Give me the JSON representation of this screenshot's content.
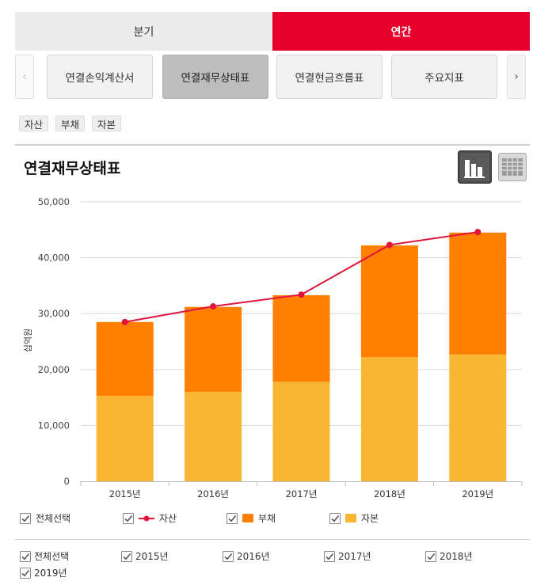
{
  "period_tabs": [
    {
      "label": "분기",
      "active": false
    },
    {
      "label": "연간",
      "active": true
    }
  ],
  "statement_tabs": [
    {
      "label": "연결손익계산서",
      "selected": false
    },
    {
      "label": "연결재무상태표",
      "selected": true
    },
    {
      "label": "연결현금흐름표",
      "selected": false
    },
    {
      "label": "주요지표",
      "selected": false
    }
  ],
  "nav": {
    "prev": "‹",
    "next": "›"
  },
  "chips": [
    "자산",
    "부채",
    "자본"
  ],
  "chart_title": "연결재무상태표",
  "view_icons": {
    "bar": "bar-chart-icon",
    "table": "table-grid-icon"
  },
  "colors": {
    "accent": "#e8002d",
    "debt": "#ff7f00",
    "equity": "#f8b633",
    "asset_line": "#e0143c"
  },
  "chart_data": {
    "type": "bar",
    "stacked": true,
    "categories": [
      "2015년",
      "2016년",
      "2017년",
      "2018년",
      "2019년"
    ],
    "series": [
      {
        "name": "자본",
        "type": "bar",
        "values": [
          15300,
          16000,
          17800,
          22200,
          22700
        ]
      },
      {
        "name": "부채",
        "type": "bar",
        "values": [
          13200,
          15200,
          15500,
          20000,
          21800
        ]
      },
      {
        "name": "자산",
        "type": "line",
        "values": [
          28500,
          31300,
          33400,
          42300,
          44600
        ]
      }
    ],
    "ylabel": "십억원",
    "ylim": [
      0,
      50000
    ],
    "yticks": [
      "0",
      "10,000",
      "20,000",
      "30,000",
      "40,000",
      "50,000"
    ],
    "grid": true
  },
  "legend": [
    {
      "label": "전체선택",
      "kind": "none"
    },
    {
      "label": "자산",
      "kind": "line"
    },
    {
      "label": "부채",
      "kind": "debt"
    },
    {
      "label": "자본",
      "kind": "equity"
    }
  ],
  "year_filter": [
    "전체선택",
    "2015년",
    "2016년",
    "2017년",
    "2018년",
    "2019년"
  ]
}
